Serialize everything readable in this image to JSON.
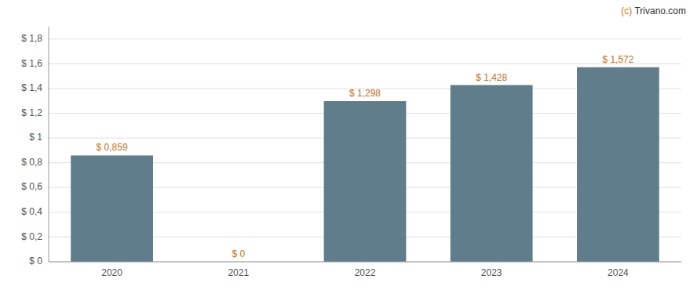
{
  "chart_data": {
    "type": "bar",
    "categories": [
      "2020",
      "2021",
      "2022",
      "2023",
      "2024"
    ],
    "values": [
      0.859,
      0.0,
      1.298,
      1.428,
      1.572
    ],
    "value_labels": [
      "$ 0,859",
      "$ 0",
      "$ 1,298",
      "$ 1,428",
      "$ 1,572"
    ],
    "color": "#607d8b",
    "ylim": [
      0,
      1.9
    ],
    "yticks": [
      {
        "value": 0,
        "label": "$ 0"
      },
      {
        "value": 0.2,
        "label": "$ 0,2"
      },
      {
        "value": 0.4,
        "label": "$ 0,4"
      },
      {
        "value": 0.6,
        "label": "$ 0,6"
      },
      {
        "value": 0.8,
        "label": "$ 0,8"
      },
      {
        "value": 1.0,
        "label": "$ 1"
      },
      {
        "value": 1.2,
        "label": "$ 1,2"
      },
      {
        "value": 1.4,
        "label": "$ 1,4"
      },
      {
        "value": 1.6,
        "label": "$ 1,6"
      },
      {
        "value": 1.8,
        "label": "$ 1,8"
      }
    ],
    "grid": true,
    "data_labels": true,
    "annotations": [
      "(c) Trivano.com"
    ]
  }
}
